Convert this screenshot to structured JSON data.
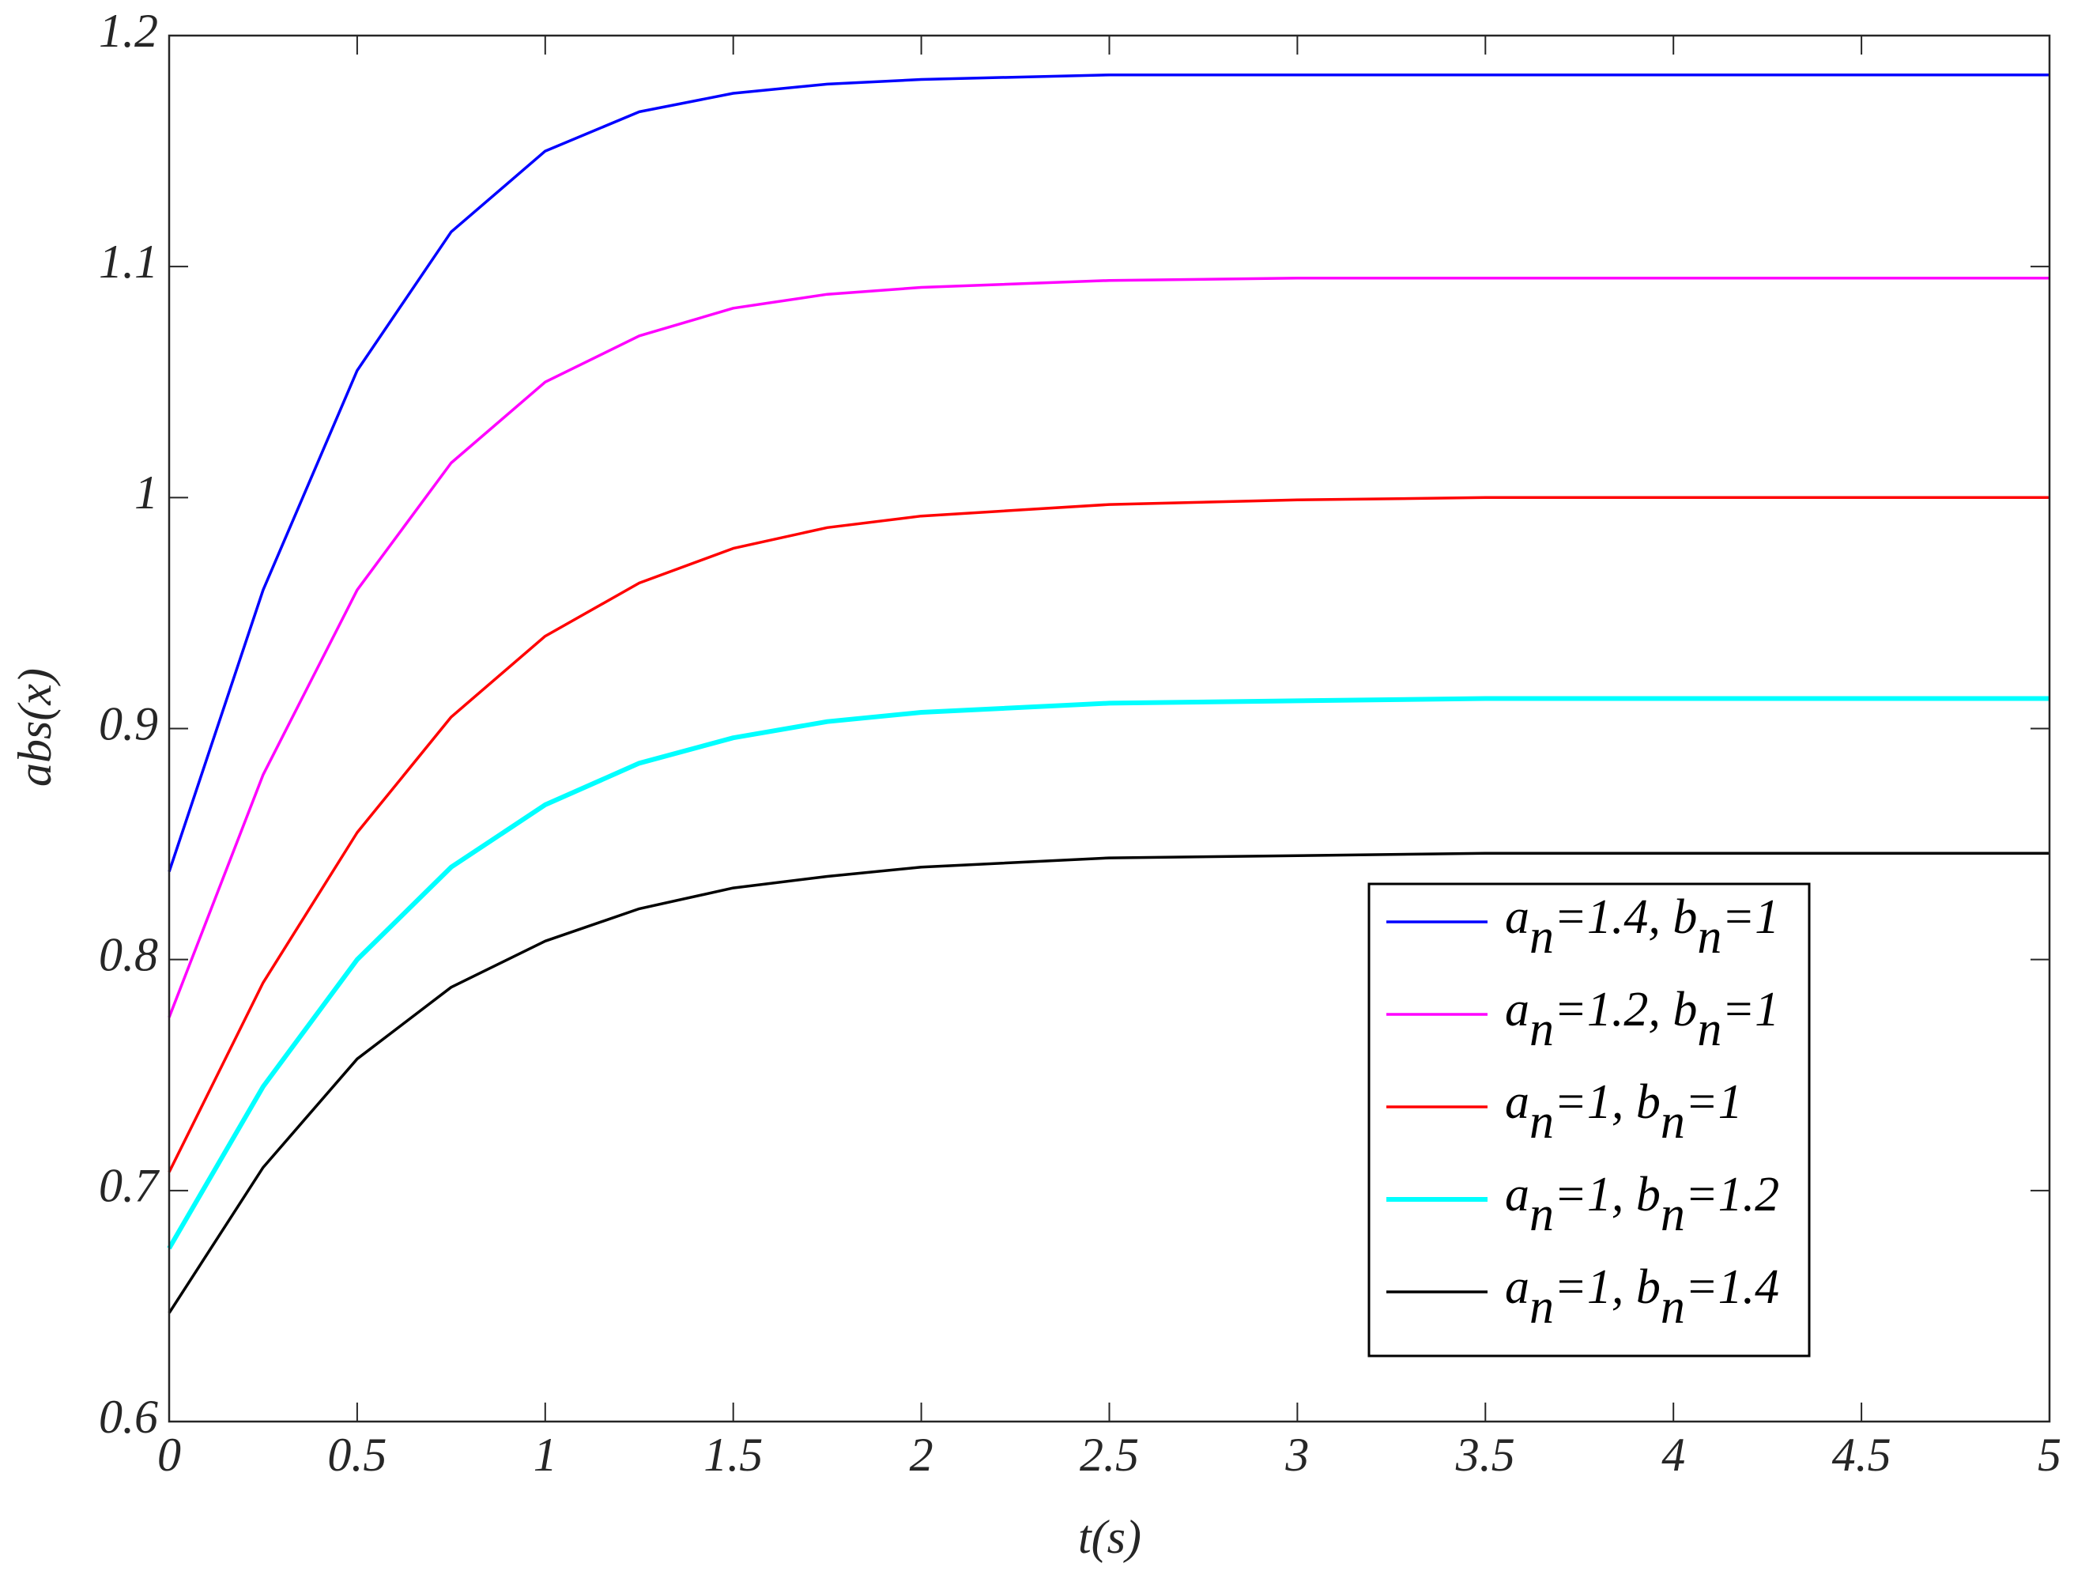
{
  "chart_data": {
    "type": "line",
    "xlabel": "t(s)",
    "ylabel": "abs(x)",
    "x": [
      0,
      0.25,
      0.5,
      0.75,
      1,
      1.25,
      1.5,
      1.75,
      2,
      2.5,
      3,
      3.5,
      4,
      4.5,
      5
    ],
    "series": [
      {
        "name": "an=1.4, bn=1",
        "color": "#0000ff",
        "values": [
          0.838,
          0.96,
          1.055,
          1.115,
          1.15,
          1.167,
          1.175,
          1.179,
          1.181,
          1.183,
          1.183,
          1.183,
          1.183,
          1.183,
          1.183
        ]
      },
      {
        "name": "an=1.2, bn=1",
        "color": "#ff00ff",
        "values": [
          0.775,
          0.88,
          0.96,
          1.015,
          1.05,
          1.07,
          1.082,
          1.088,
          1.091,
          1.094,
          1.095,
          1.095,
          1.095,
          1.095,
          1.095
        ]
      },
      {
        "name": "an=1,  bn=1",
        "color": "#ff0000",
        "values": [
          0.708,
          0.79,
          0.855,
          0.905,
          0.94,
          0.963,
          0.978,
          0.987,
          0.992,
          0.997,
          0.999,
          1.0,
          1.0,
          1.0,
          1.0
        ]
      },
      {
        "name": "an=1, bn=1.2",
        "color": "#00ffff",
        "values": [
          0.675,
          0.745,
          0.8,
          0.84,
          0.867,
          0.885,
          0.896,
          0.903,
          0.907,
          0.911,
          0.912,
          0.913,
          0.913,
          0.913,
          0.913
        ]
      },
      {
        "name": "an=1, bn=1.4",
        "color": "#000000",
        "values": [
          0.647,
          0.71,
          0.757,
          0.788,
          0.808,
          0.822,
          0.831,
          0.836,
          0.84,
          0.844,
          0.845,
          0.846,
          0.846,
          0.846,
          0.846
        ]
      }
    ],
    "xlim": [
      0,
      5
    ],
    "xticks": [
      0,
      0.5,
      1,
      1.5,
      2,
      2.5,
      3,
      3.5,
      4,
      4.5,
      5
    ],
    "ylim": [
      0.6,
      1.2
    ],
    "yticks": [
      0.6,
      0.7,
      0.8,
      0.9,
      1,
      1.1,
      1.2
    ],
    "grid": false,
    "legend": "lower right"
  }
}
